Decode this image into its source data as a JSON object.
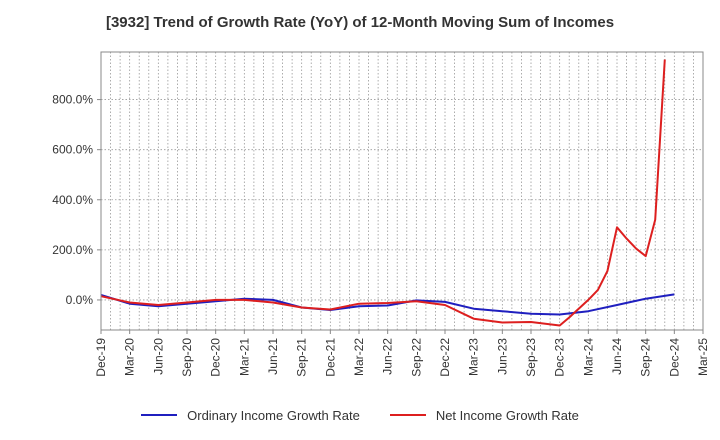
{
  "chart_data": {
    "type": "line",
    "title": "[3932]  Trend of Growth Rate (YoY) of 12-Month Moving Sum of Incomes",
    "x_ticks": [
      "Dec-19",
      "Mar-20",
      "Jun-20",
      "Sep-20",
      "Dec-20",
      "Mar-21",
      "Jun-21",
      "Sep-21",
      "Dec-21",
      "Mar-22",
      "Jun-22",
      "Sep-22",
      "Dec-22",
      "Mar-23",
      "Jun-23",
      "Sep-23",
      "Dec-23",
      "Mar-24",
      "Jun-24",
      "Sep-24",
      "Dec-24",
      "Mar-25"
    ],
    "y_ticks": [
      0,
      200,
      400,
      600,
      800
    ],
    "y_tick_labels": [
      "0.0%",
      "200.0%",
      "400.0%",
      "600.0%",
      "800.0%"
    ],
    "ylim": [
      -120,
      990
    ],
    "grid": true,
    "legend_position": "bottom",
    "series": [
      {
        "name": "Ordinary Income Growth Rate",
        "color": "#1f1fbf",
        "points": [
          [
            "Dec-19",
            20
          ],
          [
            "Mar-20",
            -15
          ],
          [
            "Jun-20",
            -25
          ],
          [
            "Sep-20",
            -15
          ],
          [
            "Dec-20",
            -5
          ],
          [
            "Mar-21",
            5
          ],
          [
            "Jun-21",
            0
          ],
          [
            "Sep-21",
            -30
          ],
          [
            "Dec-21",
            -40
          ],
          [
            "Mar-22",
            -25
          ],
          [
            "Jun-22",
            -22
          ],
          [
            "Sep-22",
            -2
          ],
          [
            "Dec-22",
            -8
          ],
          [
            "Mar-23",
            -35
          ],
          [
            "Jun-23",
            -45
          ],
          [
            "Sep-23",
            -55
          ],
          [
            "Dec-23",
            -58
          ],
          [
            "Mar-24",
            -45
          ],
          [
            "Jun-24",
            -20
          ],
          [
            "Sep-24",
            5
          ],
          [
            "Dec-24",
            22
          ]
        ]
      },
      {
        "name": "Net Income Growth Rate",
        "color": "#dd1f1f",
        "points": [
          [
            "Dec-19",
            15
          ],
          [
            "Mar-20",
            -10
          ],
          [
            "Jun-20",
            -20
          ],
          [
            "Sep-20",
            -10
          ],
          [
            "Dec-20",
            0
          ],
          [
            "Mar-21",
            0
          ],
          [
            "Jun-21",
            -10
          ],
          [
            "Sep-21",
            -30
          ],
          [
            "Dec-21",
            -38
          ],
          [
            "Mar-22",
            -15
          ],
          [
            "Jun-22",
            -12
          ],
          [
            "Sep-22",
            -5
          ],
          [
            "Dec-22",
            -20
          ],
          [
            "Mar-23",
            -75
          ],
          [
            "Jun-23",
            -90
          ],
          [
            "Sep-23",
            -88
          ],
          [
            "Dec-23",
            -102
          ],
          [
            "Jan-24",
            -70
          ],
          [
            "Mar-24",
            0
          ],
          [
            "Apr-24",
            40
          ],
          [
            "May-24",
            115
          ],
          [
            "Jun-24",
            290
          ],
          [
            "Jul-24",
            245
          ],
          [
            "Aug-24",
            205
          ],
          [
            "Sep-24",
            175
          ],
          [
            "Oct-24",
            320
          ],
          [
            "Nov-24",
            960
          ]
        ]
      }
    ]
  }
}
